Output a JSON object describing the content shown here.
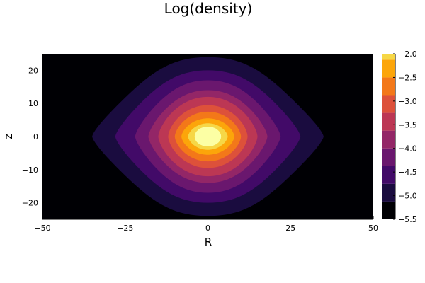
{
  "chart_data": {
    "type": "heatmap",
    "subtype": "filled-contour",
    "title": "Log(density)",
    "xlabel": "R",
    "ylabel": "z",
    "xlim": [
      -50,
      50
    ],
    "ylim": [
      -25,
      25
    ],
    "x_ticks": [
      -50,
      -25,
      0,
      25,
      50
    ],
    "x_tick_labels": [
      "−50",
      "−25",
      "0",
      "25",
      "50"
    ],
    "y_ticks": [
      -20,
      -10,
      0,
      10,
      20
    ],
    "y_tick_labels": [
      "−20",
      "−10",
      "0",
      "10",
      "20"
    ],
    "colorbar": {
      "range": [
        -5.5,
        -2.0
      ],
      "ticks": [
        -5.5,
        -5.0,
        -4.5,
        -4.0,
        -3.5,
        -3.0,
        -2.5,
        -2.0
      ],
      "tick_labels": [
        "−5.5",
        "−5.0",
        "−4.5",
        "−4.0",
        "−3.5",
        "−3.0",
        "−2.5",
        "−2.0"
      ],
      "levels": [
        -5.5,
        -5.125,
        -4.75,
        -4.375,
        -4.0,
        -3.625,
        -3.25,
        -2.875,
        -2.5,
        -2.125,
        -2.0
      ],
      "colors": [
        "#000004",
        "#1a0c3f",
        "#420a68",
        "#6a176e",
        "#932667",
        "#bc3754",
        "#dd513a",
        "#f37819",
        "#fca50a",
        "#f6d746",
        "#fcffa4"
      ]
    },
    "contours": [
      {
        "level": -5.5,
        "half_width_R": 50,
        "half_height_z": 25
      },
      {
        "level": -5.125,
        "half_width_R": 35,
        "half_height_z": 24
      },
      {
        "level": -4.75,
        "half_width_R": 28,
        "half_height_z": 20
      },
      {
        "level": -4.375,
        "half_width_R": 22,
        "half_height_z": 17
      },
      {
        "level": -4.0,
        "half_width_R": 18,
        "half_height_z": 14
      },
      {
        "level": -3.625,
        "half_width_R": 15,
        "half_height_z": 12
      },
      {
        "level": -3.25,
        "half_width_R": 12,
        "half_height_z": 9.5
      },
      {
        "level": -2.875,
        "half_width_R": 10,
        "half_height_z": 7.5
      },
      {
        "level": -2.5,
        "half_width_R": 8,
        "half_height_z": 5.5
      },
      {
        "level": -2.125,
        "half_width_R": 6,
        "half_height_z": 4
      }
    ],
    "grid": false,
    "legend": "colorbar-right"
  }
}
